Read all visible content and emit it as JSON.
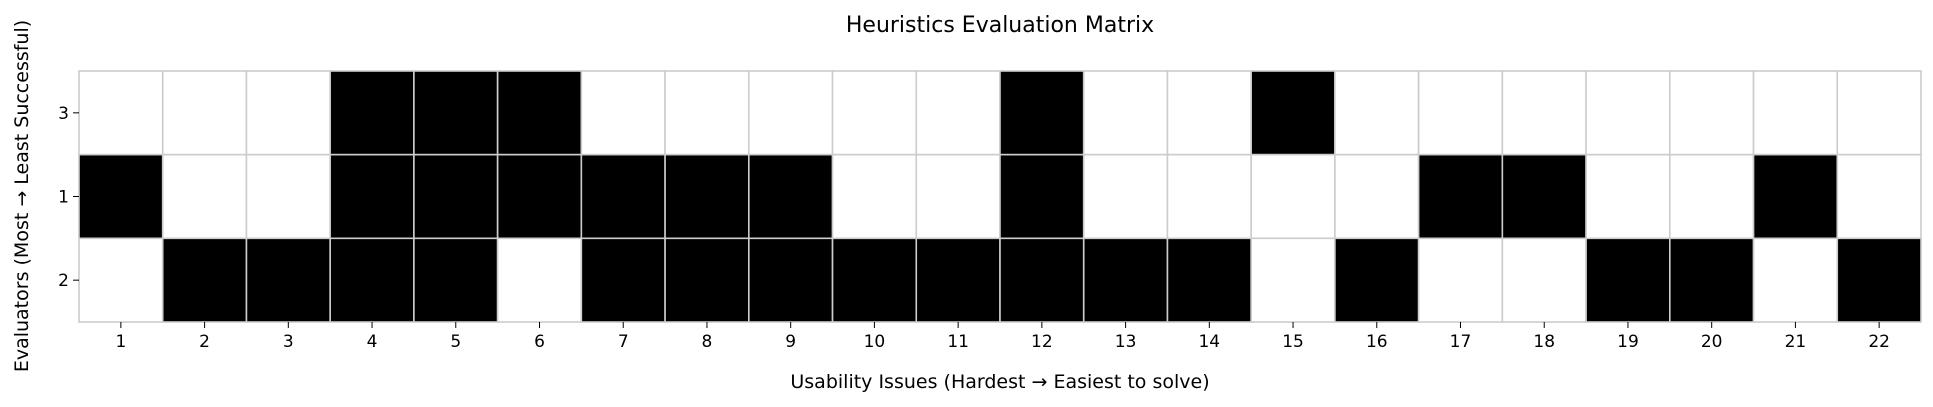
{
  "chart_data": {
    "type": "heatmap",
    "title": "Heuristics Evaluation Matrix",
    "xlabel": "Usability Issues (Hardest → Easiest to solve)",
    "ylabel": "Evaluators (Most → Least Successful)",
    "x_categories": [
      "1",
      "2",
      "3",
      "4",
      "5",
      "6",
      "7",
      "8",
      "9",
      "10",
      "11",
      "12",
      "13",
      "14",
      "15",
      "16",
      "17",
      "18",
      "19",
      "20",
      "21",
      "22"
    ],
    "y_categories": [
      "3",
      "1",
      "2"
    ],
    "values": [
      [
        0,
        0,
        0,
        1,
        1,
        1,
        0,
        0,
        0,
        0,
        0,
        1,
        0,
        0,
        1,
        0,
        0,
        0,
        0,
        0,
        0,
        0
      ],
      [
        1,
        0,
        0,
        1,
        1,
        1,
        1,
        1,
        1,
        0,
        0,
        1,
        0,
        0,
        0,
        0,
        1,
        1,
        0,
        0,
        1,
        0
      ],
      [
        0,
        1,
        1,
        1,
        1,
        0,
        1,
        1,
        1,
        1,
        1,
        1,
        1,
        1,
        0,
        1,
        0,
        0,
        1,
        1,
        0,
        1
      ]
    ],
    "legend": "none",
    "colors": {
      "found": "#000000",
      "not_found": "#ffffff",
      "grid": "#cccccc"
    }
  }
}
